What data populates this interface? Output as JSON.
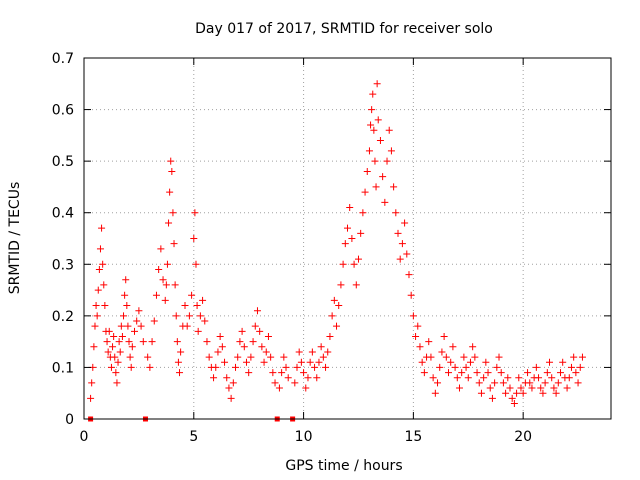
{
  "chart_data": {
    "type": "scatter",
    "title": "Day 017 of 2017, SRMTID for receiver solo",
    "xlabel": "GPS time / hours",
    "ylabel": "SRMTID / TECUs",
    "xlim": [
      0,
      24
    ],
    "ylim": [
      0,
      0.7
    ],
    "xticks": [
      0,
      5,
      10,
      15,
      20
    ],
    "xtick_labels": [
      "0",
      "5",
      "10",
      "15",
      "20"
    ],
    "yticks": [
      0,
      0.1,
      0.2,
      0.3,
      0.4,
      0.5,
      0.6,
      0.7
    ],
    "ytick_labels": [
      "0",
      "0.1",
      "0.2",
      "0.3",
      "0.4",
      "0.5",
      "0.6",
      "0.7"
    ],
    "grid": true,
    "marker": "plus",
    "color": "#ff0000",
    "data_gap_markers_x": [
      0.3,
      2.8,
      8.8,
      9.5
    ],
    "series": [
      {
        "name": "SRMTID",
        "points": [
          [
            0.3,
            0.04
          ],
          [
            0.35,
            0.07
          ],
          [
            0.4,
            0.1
          ],
          [
            0.45,
            0.14
          ],
          [
            0.5,
            0.18
          ],
          [
            0.55,
            0.22
          ],
          [
            0.6,
            0.2
          ],
          [
            0.65,
            0.25
          ],
          [
            0.7,
            0.29
          ],
          [
            0.75,
            0.33
          ],
          [
            0.8,
            0.37
          ],
          [
            0.85,
            0.3
          ],
          [
            0.9,
            0.26
          ],
          [
            0.95,
            0.22
          ],
          [
            1.0,
            0.17
          ],
          [
            1.05,
            0.15
          ],
          [
            1.1,
            0.13
          ],
          [
            1.15,
            0.17
          ],
          [
            1.2,
            0.12
          ],
          [
            1.25,
            0.1
          ],
          [
            1.3,
            0.14
          ],
          [
            1.35,
            0.16
          ],
          [
            1.4,
            0.12
          ],
          [
            1.45,
            0.09
          ],
          [
            1.5,
            0.07
          ],
          [
            1.55,
            0.11
          ],
          [
            1.6,
            0.15
          ],
          [
            1.65,
            0.13
          ],
          [
            1.7,
            0.18
          ],
          [
            1.75,
            0.16
          ],
          [
            1.8,
            0.2
          ],
          [
            1.85,
            0.24
          ],
          [
            1.9,
            0.27
          ],
          [
            1.95,
            0.22
          ],
          [
            2.0,
            0.18
          ],
          [
            2.05,
            0.15
          ],
          [
            2.1,
            0.12
          ],
          [
            2.15,
            0.1
          ],
          [
            2.2,
            0.14
          ],
          [
            2.3,
            0.17
          ],
          [
            2.4,
            0.19
          ],
          [
            2.5,
            0.21
          ],
          [
            2.6,
            0.18
          ],
          [
            2.7,
            0.15
          ],
          [
            2.9,
            0.12
          ],
          [
            3.0,
            0.1
          ],
          [
            3.1,
            0.15
          ],
          [
            3.2,
            0.19
          ],
          [
            3.3,
            0.24
          ],
          [
            3.4,
            0.29
          ],
          [
            3.5,
            0.33
          ],
          [
            3.6,
            0.27
          ],
          [
            3.7,
            0.23
          ],
          [
            3.75,
            0.26
          ],
          [
            3.8,
            0.3
          ],
          [
            3.85,
            0.38
          ],
          [
            3.9,
            0.44
          ],
          [
            3.95,
            0.5
          ],
          [
            4.0,
            0.48
          ],
          [
            4.05,
            0.4
          ],
          [
            4.1,
            0.34
          ],
          [
            4.15,
            0.26
          ],
          [
            4.2,
            0.2
          ],
          [
            4.25,
            0.15
          ],
          [
            4.3,
            0.11
          ],
          [
            4.35,
            0.09
          ],
          [
            4.4,
            0.13
          ],
          [
            4.5,
            0.18
          ],
          [
            4.6,
            0.22
          ],
          [
            4.7,
            0.18
          ],
          [
            4.8,
            0.2
          ],
          [
            4.9,
            0.24
          ],
          [
            5.0,
            0.35
          ],
          [
            5.05,
            0.4
          ],
          [
            5.1,
            0.3
          ],
          [
            5.15,
            0.22
          ],
          [
            5.2,
            0.17
          ],
          [
            5.3,
            0.2
          ],
          [
            5.4,
            0.23
          ],
          [
            5.5,
            0.19
          ],
          [
            5.6,
            0.15
          ],
          [
            5.7,
            0.12
          ],
          [
            5.8,
            0.1
          ],
          [
            5.9,
            0.08
          ],
          [
            6.0,
            0.1
          ],
          [
            6.1,
            0.13
          ],
          [
            6.2,
            0.16
          ],
          [
            6.3,
            0.14
          ],
          [
            6.4,
            0.11
          ],
          [
            6.5,
            0.08
          ],
          [
            6.6,
            0.06
          ],
          [
            6.7,
            0.04
          ],
          [
            6.8,
            0.07
          ],
          [
            6.9,
            0.1
          ],
          [
            7.0,
            0.12
          ],
          [
            7.1,
            0.15
          ],
          [
            7.2,
            0.17
          ],
          [
            7.3,
            0.14
          ],
          [
            7.4,
            0.11
          ],
          [
            7.5,
            0.09
          ],
          [
            7.6,
            0.12
          ],
          [
            7.7,
            0.15
          ],
          [
            7.8,
            0.18
          ],
          [
            7.9,
            0.21
          ],
          [
            8.0,
            0.17
          ],
          [
            8.1,
            0.14
          ],
          [
            8.2,
            0.11
          ],
          [
            8.3,
            0.13
          ],
          [
            8.4,
            0.16
          ],
          [
            8.5,
            0.12
          ],
          [
            8.6,
            0.09
          ],
          [
            8.7,
            0.07
          ],
          [
            8.9,
            0.06
          ],
          [
            9.0,
            0.09
          ],
          [
            9.1,
            0.12
          ],
          [
            9.2,
            0.1
          ],
          [
            9.3,
            0.08
          ],
          [
            9.6,
            0.07
          ],
          [
            9.7,
            0.1
          ],
          [
            9.8,
            0.13
          ],
          [
            9.9,
            0.11
          ],
          [
            10.0,
            0.09
          ],
          [
            10.1,
            0.06
          ],
          [
            10.2,
            0.08
          ],
          [
            10.3,
            0.11
          ],
          [
            10.4,
            0.13
          ],
          [
            10.5,
            0.1
          ],
          [
            10.6,
            0.08
          ],
          [
            10.7,
            0.11
          ],
          [
            10.8,
            0.14
          ],
          [
            10.9,
            0.12
          ],
          [
            11.0,
            0.1
          ],
          [
            11.1,
            0.13
          ],
          [
            11.2,
            0.16
          ],
          [
            11.3,
            0.2
          ],
          [
            11.4,
            0.23
          ],
          [
            11.5,
            0.18
          ],
          [
            11.6,
            0.22
          ],
          [
            11.7,
            0.26
          ],
          [
            11.8,
            0.3
          ],
          [
            11.9,
            0.34
          ],
          [
            12.0,
            0.37
          ],
          [
            12.1,
            0.41
          ],
          [
            12.2,
            0.35
          ],
          [
            12.3,
            0.3
          ],
          [
            12.4,
            0.26
          ],
          [
            12.5,
            0.31
          ],
          [
            12.6,
            0.36
          ],
          [
            12.7,
            0.4
          ],
          [
            12.8,
            0.44
          ],
          [
            12.9,
            0.48
          ],
          [
            13.0,
            0.52
          ],
          [
            13.05,
            0.57
          ],
          [
            13.1,
            0.6
          ],
          [
            13.15,
            0.63
          ],
          [
            13.2,
            0.56
          ],
          [
            13.25,
            0.5
          ],
          [
            13.3,
            0.45
          ],
          [
            13.35,
            0.65
          ],
          [
            13.4,
            0.58
          ],
          [
            13.5,
            0.54
          ],
          [
            13.6,
            0.47
          ],
          [
            13.7,
            0.42
          ],
          [
            13.8,
            0.5
          ],
          [
            13.9,
            0.56
          ],
          [
            14.0,
            0.52
          ],
          [
            14.1,
            0.45
          ],
          [
            14.2,
            0.4
          ],
          [
            14.3,
            0.36
          ],
          [
            14.4,
            0.31
          ],
          [
            14.5,
            0.34
          ],
          [
            14.6,
            0.38
          ],
          [
            14.7,
            0.32
          ],
          [
            14.8,
            0.28
          ],
          [
            14.9,
            0.24
          ],
          [
            15.0,
            0.2
          ],
          [
            15.1,
            0.16
          ],
          [
            15.2,
            0.18
          ],
          [
            15.3,
            0.14
          ],
          [
            15.4,
            0.11
          ],
          [
            15.5,
            0.09
          ],
          [
            15.6,
            0.12
          ],
          [
            15.7,
            0.15
          ],
          [
            15.8,
            0.12
          ],
          [
            15.9,
            0.08
          ],
          [
            16.0,
            0.05
          ],
          [
            16.1,
            0.07
          ],
          [
            16.2,
            0.1
          ],
          [
            16.3,
            0.13
          ],
          [
            16.4,
            0.16
          ],
          [
            16.5,
            0.12
          ],
          [
            16.6,
            0.09
          ],
          [
            16.7,
            0.11
          ],
          [
            16.8,
            0.14
          ],
          [
            16.9,
            0.1
          ],
          [
            17.0,
            0.08
          ],
          [
            17.1,
            0.06
          ],
          [
            17.2,
            0.09
          ],
          [
            17.3,
            0.12
          ],
          [
            17.4,
            0.1
          ],
          [
            17.5,
            0.08
          ],
          [
            17.6,
            0.11
          ],
          [
            17.7,
            0.14
          ],
          [
            17.8,
            0.12
          ],
          [
            17.9,
            0.09
          ],
          [
            18.0,
            0.07
          ],
          [
            18.1,
            0.05
          ],
          [
            18.2,
            0.08
          ],
          [
            18.3,
            0.11
          ],
          [
            18.4,
            0.09
          ],
          [
            18.5,
            0.06
          ],
          [
            18.6,
            0.04
          ],
          [
            18.7,
            0.07
          ],
          [
            18.8,
            0.1
          ],
          [
            18.9,
            0.12
          ],
          [
            19.0,
            0.09
          ],
          [
            19.1,
            0.07
          ],
          [
            19.2,
            0.05
          ],
          [
            19.3,
            0.08
          ],
          [
            19.4,
            0.06
          ],
          [
            19.5,
            0.04
          ],
          [
            19.6,
            0.03
          ],
          [
            19.7,
            0.05
          ],
          [
            19.8,
            0.08
          ],
          [
            19.9,
            0.06
          ],
          [
            20.0,
            0.05
          ],
          [
            20.1,
            0.07
          ],
          [
            20.2,
            0.09
          ],
          [
            20.3,
            0.07
          ],
          [
            20.4,
            0.06
          ],
          [
            20.5,
            0.08
          ],
          [
            20.6,
            0.1
          ],
          [
            20.7,
            0.08
          ],
          [
            20.8,
            0.06
          ],
          [
            20.9,
            0.05
          ],
          [
            21.0,
            0.07
          ],
          [
            21.1,
            0.09
          ],
          [
            21.2,
            0.11
          ],
          [
            21.3,
            0.08
          ],
          [
            21.4,
            0.06
          ],
          [
            21.5,
            0.05
          ],
          [
            21.6,
            0.07
          ],
          [
            21.7,
            0.09
          ],
          [
            21.8,
            0.11
          ],
          [
            21.9,
            0.08
          ],
          [
            22.0,
            0.06
          ],
          [
            22.1,
            0.08
          ],
          [
            22.2,
            0.1
          ],
          [
            22.3,
            0.12
          ],
          [
            22.4,
            0.09
          ],
          [
            22.5,
            0.07
          ],
          [
            22.6,
            0.1
          ],
          [
            22.7,
            0.12
          ]
        ]
      }
    ]
  }
}
